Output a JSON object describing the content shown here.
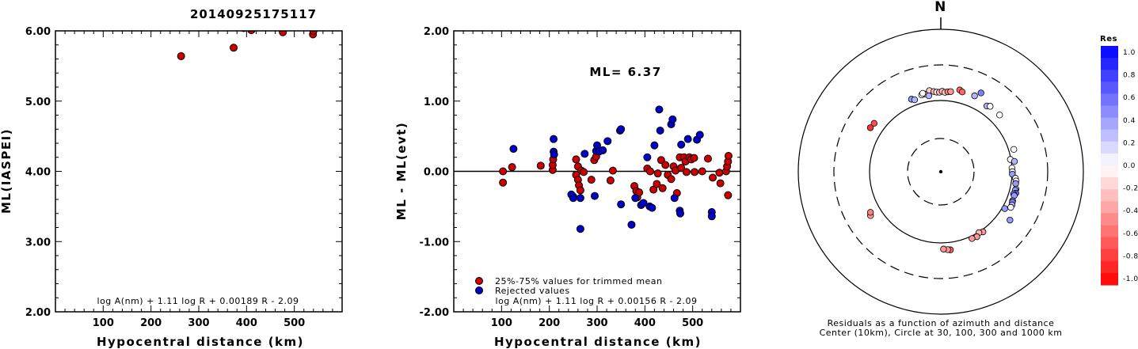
{
  "title": "20140925175117",
  "chart_data": [
    {
      "type": "scatter",
      "ylabel": "ML(IASPEI)",
      "xlabel": "Hypocentral distance (km)",
      "xlim": [
        0,
        600
      ],
      "ylim": [
        2.0,
        6.0
      ],
      "xticks": [
        "100",
        "200",
        "300",
        "400",
        "500"
      ],
      "yticks": [
        "2.00",
        "3.00",
        "4.00",
        "5.00",
        "6.00"
      ],
      "formula": "log A(nm) + 1.11 log R + 0.00189 R - 2.09",
      "points": [
        [
          263,
          5.64
        ],
        [
          373,
          5.76
        ],
        [
          394,
          6.04
        ],
        [
          410,
          6.01
        ],
        [
          476,
          5.98
        ],
        [
          539,
          5.95
        ],
        [
          540,
          6.0
        ]
      ],
      "marker_color": "#cc0000"
    },
    {
      "type": "scatter",
      "ylabel": "ML - ML(evt)",
      "xlabel": "Hypocentral distance (km)",
      "xlim": [
        0,
        600
      ],
      "ylim": [
        -2.0,
        2.0
      ],
      "xticks": [
        "100",
        "200",
        "300",
        "400",
        "500"
      ],
      "yticks": [
        "-2.00",
        "-1.00",
        "0.00",
        "1.00",
        "2.00"
      ],
      "annotation": "ML= 6.37",
      "formula": "log A(nm) + 1.11 log R + 0.00156 R - 2.09",
      "legend": [
        {
          "label": "25%-75% values for trimmed mean",
          "color": "#cc0000"
        },
        {
          "label": "Rejected values",
          "color": "#0000cc"
        }
      ],
      "series": [
        {
          "name": "25%-75% values for trimmed mean",
          "color": "#cc0000",
          "points": [
            [
              103,
              0.0
            ],
            [
              103,
              -0.16
            ],
            [
              122,
              0.06
            ],
            [
              182,
              0.08
            ],
            [
              207,
              0.02
            ],
            [
              207,
              0.09
            ],
            [
              208,
              0.17
            ],
            [
              250,
              -0.36
            ],
            [
              256,
              -0.05
            ],
            [
              256,
              0.17
            ],
            [
              260,
              0.07
            ],
            [
              260,
              -0.12
            ],
            [
              262,
              -0.2
            ],
            [
              265,
              -0.27
            ],
            [
              267,
              0.01
            ],
            [
              272,
              -0.01
            ],
            [
              288,
              -0.12
            ],
            [
              294,
              0.16
            ],
            [
              298,
              0.21
            ],
            [
              328,
              -0.13
            ],
            [
              333,
              0.01
            ],
            [
              378,
              -0.21
            ],
            [
              382,
              -0.28
            ],
            [
              384,
              -0.37
            ],
            [
              388,
              -0.3
            ],
            [
              405,
              0.04
            ],
            [
              411,
              0.0
            ],
            [
              418,
              -0.26
            ],
            [
              425,
              -0.18
            ],
            [
              427,
              -0.03
            ],
            [
              434,
              0.16
            ],
            [
              437,
              -0.24
            ],
            [
              443,
              0.09
            ],
            [
              448,
              -0.05
            ],
            [
              455,
              -0.11
            ],
            [
              460,
              0.07
            ],
            [
              464,
              0.01
            ],
            [
              467,
              -0.31
            ],
            [
              473,
              0.2
            ],
            [
              476,
              0.05
            ],
            [
              482,
              0.2
            ],
            [
              485,
              0.14
            ],
            [
              487,
              -0.01
            ],
            [
              493,
              0.2
            ],
            [
              497,
              0.17
            ],
            [
              503,
              0.19
            ],
            [
              504,
              -0.01
            ],
            [
              520,
              0.0
            ],
            [
              532,
              0.18
            ],
            [
              542,
              -0.09
            ],
            [
              556,
              -0.02
            ],
            [
              558,
              -0.17
            ],
            [
              570,
              0.0
            ],
            [
              572,
              0.07
            ],
            [
              574,
              -0.34
            ],
            [
              574,
              0.14
            ],
            [
              575,
              0.22
            ]
          ]
        },
        {
          "name": "Rejected values",
          "color": "#0000cc",
          "points": [
            [
              125,
              0.32
            ],
            [
              209,
              0.28
            ],
            [
              209,
              0.46
            ],
            [
              210,
              0.24
            ],
            [
              246,
              -0.33
            ],
            [
              250,
              -0.38
            ],
            [
              265,
              -0.82
            ],
            [
              265,
              -0.38
            ],
            [
              274,
              0.25
            ],
            [
              295,
              -0.35
            ],
            [
              298,
              0.29
            ],
            [
              300,
              0.37
            ],
            [
              304,
              0.28
            ],
            [
              312,
              0.3
            ],
            [
              322,
              0.43
            ],
            [
              348,
              0.58
            ],
            [
              350,
              0.6
            ],
            [
              350,
              -0.47
            ],
            [
              372,
              -0.76
            ],
            [
              380,
              -0.38
            ],
            [
              392,
              -0.48
            ],
            [
              397,
              -0.45
            ],
            [
              405,
              0.2
            ],
            [
              410,
              -0.5
            ],
            [
              415,
              -0.52
            ],
            [
              420,
              0.37
            ],
            [
              430,
              0.88
            ],
            [
              432,
              0.58
            ],
            [
              455,
              0.67
            ],
            [
              458,
              0.74
            ],
            [
              462,
              -0.38
            ],
            [
              473,
              -0.56
            ],
            [
              474,
              -0.6
            ],
            [
              476,
              0.38
            ],
            [
              490,
              0.46
            ],
            [
              509,
              0.45
            ],
            [
              515,
              0.52
            ],
            [
              540,
              -0.58
            ],
            [
              540,
              -0.64
            ]
          ]
        }
      ]
    },
    {
      "type": "polar-scatter",
      "north_label": "N",
      "caption_line1": "Residuals as a function of azimuth and distance",
      "caption_line2": "Center (10km), Circle at 30, 100, 300 and 1000 km",
      "colorbar_title": "Res",
      "colorbar_ticks": [
        "1.0",
        "0.8",
        "0.6",
        "0.4",
        "0.2",
        "0.0",
        "-0.2",
        "-0.4",
        "-0.6",
        "-0.8",
        "-1.0"
      ],
      "points": [
        [
          -12,
          129,
          0.0
        ],
        [
          -14,
          128,
          0.0
        ],
        [
          -13,
          133,
          0.0
        ],
        [
          -8,
          139,
          -0.2
        ],
        [
          -5,
          133,
          -0.3
        ],
        [
          -3,
          130,
          -0.1
        ],
        [
          -1,
          129,
          -0.3
        ],
        [
          1,
          133,
          -0.3
        ],
        [
          3,
          129,
          -0.2
        ],
        [
          5,
          132,
          -0.5
        ],
        [
          7,
          134,
          -0.4
        ],
        [
          13,
          148,
          -0.6
        ],
        [
          15,
          142,
          -0.6
        ],
        [
          -22,
          124,
          0.4
        ],
        [
          -20,
          118,
          0.3
        ],
        [
          -9,
          119,
          0.3
        ],
        [
          24,
          144,
          0.3
        ],
        [
          35,
          132,
          0.3
        ],
        [
          37,
          139,
          0.0
        ],
        [
          46,
          138,
          0.0
        ],
        [
          27,
          170,
          0.5
        ],
        [
          73,
          117,
          0.0
        ],
        [
          80,
          98,
          0.0
        ],
        [
          82,
          110,
          0.3
        ],
        [
          87,
          100,
          0.0
        ],
        [
          90,
          101,
          0.0
        ],
        [
          92,
          101,
          0.4
        ],
        [
          95,
          112,
          0.0
        ],
        [
          97,
          115,
          0.0
        ],
        [
          99,
          115,
          0.4
        ],
        [
          103,
          120,
          0.3
        ],
        [
          104,
          118,
          0.4
        ],
        [
          106,
          123,
          0.6
        ],
        [
          107,
          116,
          0.5
        ],
        [
          108,
          120,
          0.4
        ],
        [
          112,
          121,
          0.3
        ],
        [
          113,
          122,
          0.5
        ],
        [
          115,
          125,
          0.3
        ],
        [
          117,
          125,
          0.0
        ],
        [
          120,
          108,
          0.4
        ],
        [
          125,
          150,
          0.4
        ],
        [
          145,
          107,
          -0.4
        ],
        [
          148,
          102,
          -0.3
        ],
        [
          151,
          110,
          -0.4
        ],
        [
          155,
          108,
          -0.4
        ],
        [
          173,
          126,
          -0.6
        ],
        [
          175,
          124,
          -0.4
        ],
        [
          178,
          121,
          -0.4
        ],
        [
          238,
          143,
          -0.4
        ],
        [
          240,
          136,
          -0.5
        ],
        [
          302,
          144,
          -0.8
        ],
        [
          306,
          141,
          -0.7
        ]
      ]
    }
  ]
}
